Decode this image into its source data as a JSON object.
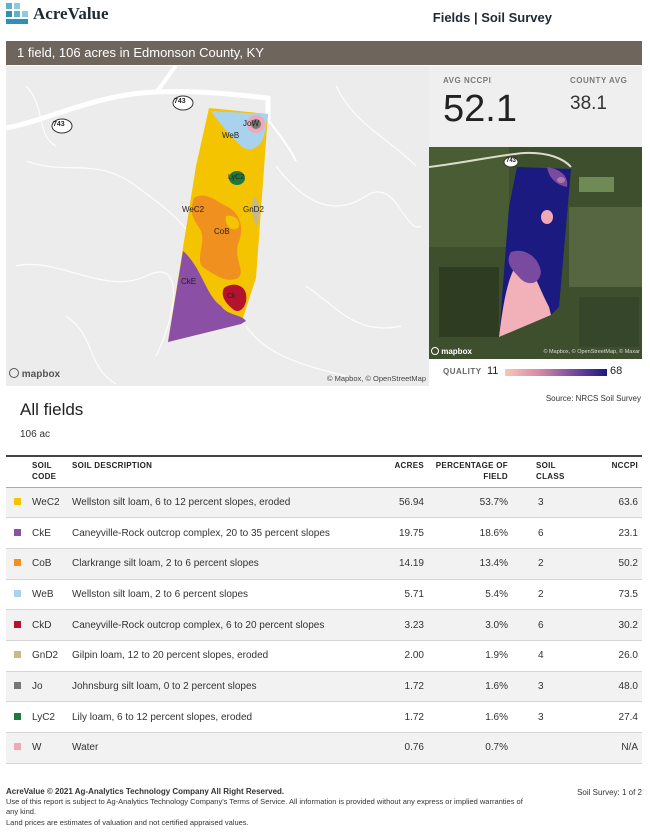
{
  "header": {
    "logo_text": "AcreValue",
    "page_heading": "Fields | Soil Survey"
  },
  "banner": {
    "text": "1 field, 106 acres in Edmonson County, KY"
  },
  "map_left": {
    "road_label_743_top": "743",
    "road_label_743_left": "743",
    "soil_labels": [
      "WeB",
      "JoW",
      "LyC2",
      "WeC2",
      "GnD2",
      "CoB",
      "CkE",
      "Ck"
    ],
    "mapbox_label": "mapbox",
    "attribution": "© Mapbox, © OpenStreetMap"
  },
  "stats": {
    "avg_label": "AVG NCCPI",
    "avg_value": "52.1",
    "county_label": "COUNTY AVG",
    "county_value": "38.1"
  },
  "map_right": {
    "road_label": "743",
    "mapbox_label": "mapbox",
    "attribution": "© Mapbox, © OpenStreetMap, © Maxar"
  },
  "quality": {
    "label": "QUALITY",
    "min": "11",
    "max": "68"
  },
  "source": "Source: NRCS Soil Survey",
  "section": {
    "title": "All fields",
    "subtitle": "106 ac"
  },
  "table": {
    "headers": {
      "code": "SOIL CODE",
      "desc": "SOIL DESCRIPTION",
      "acres": "ACRES",
      "pct": "PERCENTAGE OF FIELD",
      "cls": "SOIL CLASS",
      "nccpi": "NCCPI"
    },
    "rows": [
      {
        "color": "#f5c400",
        "code": "WeC2",
        "desc": "Wellston silt loam, 6 to 12 percent slopes, eroded",
        "acres": "56.94",
        "pct": "53.7%",
        "cls": "3",
        "nccpi": "63.6"
      },
      {
        "color": "#8b4fa5",
        "code": "CkE",
        "desc": "Caneyville-Rock outcrop complex, 20 to 35 percent slopes",
        "acres": "19.75",
        "pct": "18.6%",
        "cls": "6",
        "nccpi": "23.1"
      },
      {
        "color": "#f0901e",
        "code": "CoB",
        "desc": "Clarkrange silt loam, 2 to 6 percent slopes",
        "acres": "14.19",
        "pct": "13.4%",
        "cls": "2",
        "nccpi": "50.2"
      },
      {
        "color": "#a9d2ec",
        "code": "WeB",
        "desc": "Wellston silt loam, 2 to 6 percent slopes",
        "acres": "5.71",
        "pct": "5.4%",
        "cls": "2",
        "nccpi": "73.5"
      },
      {
        "color": "#b5122e",
        "code": "CkD",
        "desc": "Caneyville-Rock outcrop complex, 6 to 20 percent slopes",
        "acres": "3.23",
        "pct": "3.0%",
        "cls": "6",
        "nccpi": "30.2"
      },
      {
        "color": "#c6b98a",
        "code": "GnD2",
        "desc": "Gilpin loam, 12 to 20 percent slopes, eroded",
        "acres": "2.00",
        "pct": "1.9%",
        "cls": "4",
        "nccpi": "26.0"
      },
      {
        "color": "#777777",
        "code": "Jo",
        "desc": "Johnsburg silt loam, 0 to 2 percent slopes",
        "acres": "1.72",
        "pct": "1.6%",
        "cls": "3",
        "nccpi": "48.0"
      },
      {
        "color": "#1e7a3c",
        "code": "LyC2",
        "desc": "Lily loam, 6 to 12 percent slopes, eroded",
        "acres": "1.72",
        "pct": "1.6%",
        "cls": "3",
        "nccpi": "27.4"
      },
      {
        "color": "#f2a7b8",
        "code": "W",
        "desc": "Water",
        "acres": "0.76",
        "pct": "0.7%",
        "cls": "",
        "nccpi": "N/A"
      }
    ]
  },
  "footer": {
    "copyright": "AcreValue © 2021 Ag-Analytics Technology Company All Right Reserved.",
    "terms": "Use of this report is subject to Ag-Analytics Technology Company's Terms of Service.  All information is provided without any express or implied warranties of any kind.",
    "disclaimer": "Land prices are estimates of valuation and not certified appraised values.",
    "page": "Soil Survey: 1 of 2"
  }
}
